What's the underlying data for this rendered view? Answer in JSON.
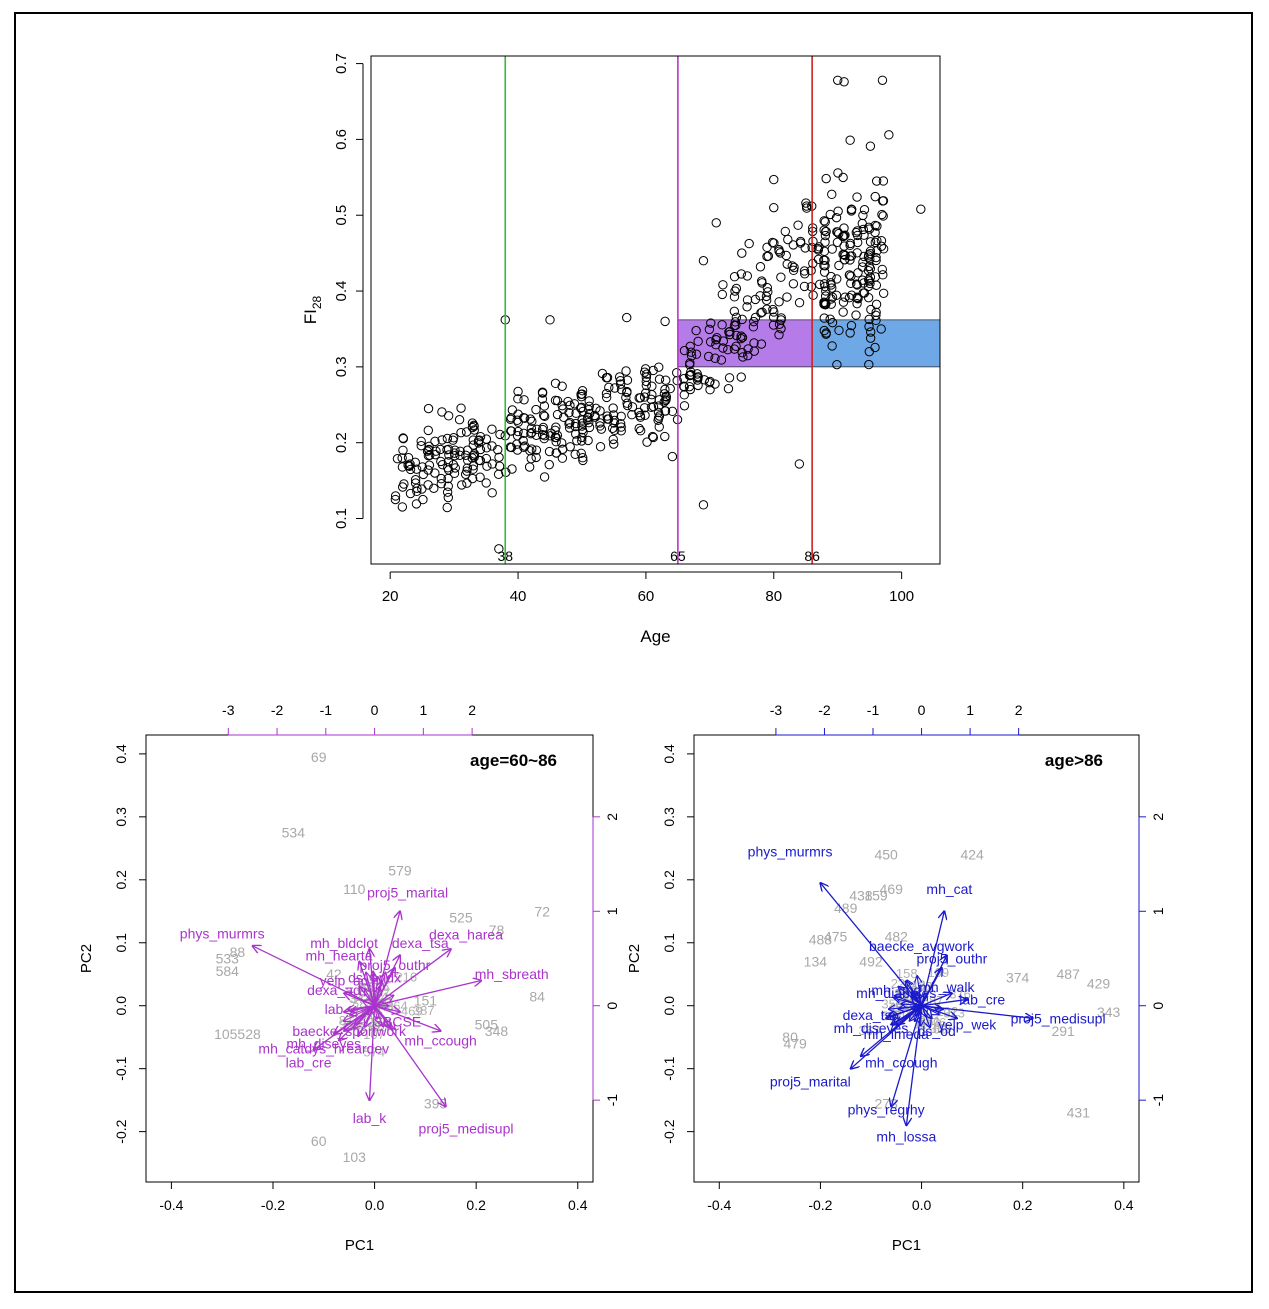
{
  "chart_data": [
    {
      "type": "scatter",
      "xlabel": "Age",
      "ylabel_main": "FI",
      "ylabel_sub": "28",
      "xlim": [
        17,
        106
      ],
      "ylim": [
        0.04,
        0.71
      ],
      "xticks": [
        20,
        40,
        60,
        80,
        100
      ],
      "yticks": [
        0.1,
        0.2,
        0.3,
        0.4,
        0.5,
        0.6,
        0.7
      ],
      "vlines": [
        {
          "x": 38,
          "label": "38",
          "color": "#33bb33"
        },
        {
          "x": 65,
          "label": "65",
          "color": "#bb33cc"
        },
        {
          "x": 86,
          "label": "86",
          "color": "#cc2222"
        }
      ],
      "bands": [
        {
          "x0": 65,
          "x1": 86,
          "y0": 0.3,
          "y1": 0.362,
          "color": "#b57be8"
        },
        {
          "x0": 86,
          "x1": 106,
          "y0": 0.3,
          "y1": 0.362,
          "color": "#6fa8e6"
        }
      ],
      "clusters": [
        {
          "x0": 21,
          "x1": 64,
          "slope": 0.0026,
          "base": 0.155,
          "spread": 0.045,
          "n": 330
        },
        {
          "x0": 64,
          "x1": 87,
          "slope": 0.009,
          "base": 0.26,
          "spread": 0.07,
          "n": 150
        },
        {
          "x0": 87,
          "x1": 97,
          "slope": 0.0,
          "base": 0.43,
          "spread": 0.11,
          "n": 170
        }
      ],
      "extra_points": [
        [
          38,
          0.362
        ],
        [
          45,
          0.362
        ],
        [
          57,
          0.365
        ],
        [
          63,
          0.36
        ],
        [
          90,
          0.678
        ],
        [
          91,
          0.676
        ],
        [
          97,
          0.678
        ],
        [
          103,
          0.508
        ],
        [
          98,
          0.606
        ],
        [
          69,
          0.44
        ],
        [
          71,
          0.49
        ],
        [
          75,
          0.45
        ],
        [
          80,
          0.547
        ],
        [
          80,
          0.51
        ],
        [
          26,
          0.245
        ],
        [
          22,
          0.19
        ],
        [
          37,
          0.06
        ],
        [
          84,
          0.172
        ],
        [
          69,
          0.118
        ]
      ]
    },
    {
      "type": "biplot",
      "title": "age=60~86",
      "color": "#aa33cc",
      "xlabel": "PC1",
      "ylabel": "PC2",
      "xlim": [
        -0.45,
        0.43
      ],
      "ylim": [
        -0.28,
        0.43
      ],
      "xticks": [
        -0.4,
        -0.2,
        0.0,
        0.2,
        0.4
      ],
      "yticks": [
        -0.2,
        -0.1,
        0.0,
        0.1,
        0.2,
        0.3,
        0.4
      ],
      "top_ticks": [
        -3,
        -2,
        -1,
        0,
        1,
        2
      ],
      "right_ticks": [
        -1,
        0,
        1,
        2
      ],
      "loading_scale": 6.9,
      "loadings": [
        {
          "name": "phys_murmrs",
          "x": -0.24,
          "y": 0.095,
          "lx": -0.3,
          "ly": 0.115
        },
        {
          "name": "proj5_marital",
          "x": 0.05,
          "y": 0.15,
          "lx": 0.065,
          "ly": 0.18
        },
        {
          "name": "mh_bldclot",
          "x": -0.01,
          "y": 0.09,
          "lx": -0.06,
          "ly": 0.1
        },
        {
          "name": "dexa_tsa",
          "x": 0.05,
          "y": 0.08,
          "lx": 0.09,
          "ly": 0.1
        },
        {
          "name": "dexa_harea",
          "x": 0.15,
          "y": 0.09,
          "lx": 0.18,
          "ly": 0.113
        },
        {
          "name": "mh_hearta",
          "x": -0.03,
          "y": 0.07,
          "lx": -0.07,
          "ly": 0.08
        },
        {
          "name": "proj5_outhr",
          "x": 0.04,
          "y": 0.06,
          "lx": 0.04,
          "ly": 0.065
        },
        {
          "name": "mh_sbreath",
          "x": 0.21,
          "y": 0.04,
          "lx": 0.27,
          "ly": 0.05
        },
        {
          "name": "mh_ccough",
          "x": 0.13,
          "y": -0.04,
          "lx": 0.13,
          "ly": -0.055
        },
        {
          "name": "proj5_medisupl",
          "x": 0.14,
          "y": -0.16,
          "lx": 0.18,
          "ly": -0.195
        },
        {
          "name": "lab_k",
          "x": -0.01,
          "y": -0.15,
          "lx": -0.01,
          "ly": -0.178
        },
        {
          "name": "lab_cre",
          "x": -0.12,
          "y": -0.07,
          "lx": -0.13,
          "ly": -0.09
        },
        {
          "name": "mh_catdys_hreardev",
          "x": -0.07,
          "y": -0.055,
          "lx": -0.1,
          "ly": -0.068
        },
        {
          "name": "baecke_sportwork",
          "x": -0.06,
          "y": -0.04,
          "lx": -0.05,
          "ly": -0.04
        },
        {
          "name": "mh_diseyes",
          "x": -0.08,
          "y": -0.045,
          "lx": -0.1,
          "ly": -0.06
        },
        {
          "name": "SBCSE",
          "x": 0.05,
          "y": -0.01,
          "lx": 0.045,
          "ly": -0.025
        },
        {
          "name": "ds_andx",
          "x": 0.01,
          "y": 0.03,
          "lx": 0.0,
          "ly": 0.045
        },
        {
          "name": "yelp_ad",
          "x": -0.03,
          "y": 0.03,
          "lx": -0.06,
          "ly": 0.04
        },
        {
          "name": "dexa_ad",
          "x": -0.06,
          "y": 0.02,
          "lx": -0.08,
          "ly": 0.025
        },
        {
          "name": "lab",
          "x": -0.06,
          "y": -0.01,
          "lx": -0.08,
          "ly": -0.005
        }
      ],
      "samples": [
        {
          "id": "69",
          "x": -0.11,
          "y": 0.395
        },
        {
          "id": "534",
          "x": -0.16,
          "y": 0.275
        },
        {
          "id": "579",
          "x": 0.05,
          "y": 0.215
        },
        {
          "id": "110",
          "x": -0.04,
          "y": 0.185
        },
        {
          "id": "525",
          "x": 0.17,
          "y": 0.14
        },
        {
          "id": "72",
          "x": 0.33,
          "y": 0.15
        },
        {
          "id": "78",
          "x": 0.24,
          "y": 0.12
        },
        {
          "id": "88",
          "x": -0.27,
          "y": 0.085
        },
        {
          "id": "533",
          "x": -0.29,
          "y": 0.075
        },
        {
          "id": "584",
          "x": -0.29,
          "y": 0.055
        },
        {
          "id": "42",
          "x": -0.08,
          "y": 0.05
        },
        {
          "id": "84",
          "x": 0.32,
          "y": 0.015
        },
        {
          "id": "151",
          "x": 0.1,
          "y": 0.008
        },
        {
          "id": "505",
          "x": 0.22,
          "y": -0.03
        },
        {
          "id": "348",
          "x": 0.24,
          "y": -0.04
        },
        {
          "id": "105528",
          "x": -0.27,
          "y": -0.045
        },
        {
          "id": "395",
          "x": 0.12,
          "y": -0.155
        },
        {
          "id": "60",
          "x": -0.11,
          "y": -0.215
        },
        {
          "id": "103",
          "x": -0.04,
          "y": -0.24
        }
      ],
      "noise_labels": 30
    },
    {
      "type": "biplot",
      "title": "age>86",
      "color": "#1a1acc",
      "xlabel": "PC1",
      "ylabel": "PC2",
      "xlim": [
        -0.45,
        0.43
      ],
      "ylim": [
        -0.28,
        0.43
      ],
      "xticks": [
        -0.4,
        -0.2,
        0.0,
        0.2,
        0.4
      ],
      "yticks": [
        -0.2,
        -0.1,
        0.0,
        0.1,
        0.2,
        0.3,
        0.4
      ],
      "top_ticks": [
        -3,
        -2,
        -1,
        0,
        1,
        2
      ],
      "right_ticks": [
        -1,
        0,
        1,
        2
      ],
      "loading_scale": 6.9,
      "loadings": [
        {
          "name": "phys_murmrs",
          "x": -0.2,
          "y": 0.195,
          "lx": -0.26,
          "ly": 0.245
        },
        {
          "name": "mh_cat",
          "x": 0.045,
          "y": 0.15,
          "lx": 0.055,
          "ly": 0.185
        },
        {
          "name": "baecke_avgwork",
          "x": 0.05,
          "y": 0.08,
          "lx": 0.0,
          "ly": 0.095
        },
        {
          "name": "proj5_outhr",
          "x": 0.04,
          "y": 0.06,
          "lx": 0.06,
          "ly": 0.075
        },
        {
          "name": "mh_walk",
          "x": 0.06,
          "y": 0.02,
          "lx": 0.05,
          "ly": 0.03
        },
        {
          "name": "lab_cre",
          "x": 0.09,
          "y": 0.01,
          "lx": 0.12,
          "ly": 0.01
        },
        {
          "name": "proj5_medisupl",
          "x": 0.22,
          "y": -0.02,
          "lx": 0.27,
          "ly": -0.02
        },
        {
          "name": "mh_diabetes",
          "x": -0.02,
          "y": 0.02,
          "lx": -0.05,
          "ly": 0.02
        },
        {
          "name": "dexa_tsa",
          "x": -0.07,
          "y": -0.02,
          "lx": -0.1,
          "ly": -0.015
        },
        {
          "name": "mh_diseyes",
          "x": -0.06,
          "y": -0.03,
          "lx": -0.1,
          "ly": -0.035
        },
        {
          "name": "mh_ccough",
          "x": -0.12,
          "y": -0.08,
          "lx": -0.04,
          "ly": -0.09
        },
        {
          "name": "proj5_marital",
          "x": -0.14,
          "y": -0.1,
          "lx": -0.22,
          "ly": -0.12
        },
        {
          "name": "phys_regrhy",
          "x": -0.06,
          "y": -0.16,
          "lx": -0.07,
          "ly": -0.165
        },
        {
          "name": "mh_lossa",
          "x": -0.03,
          "y": -0.19,
          "lx": -0.03,
          "ly": -0.208
        },
        {
          "name": "mh_imeda",
          "x": -0.05,
          "y": -0.03,
          "lx": -0.05,
          "ly": -0.045
        },
        {
          "name": "ds_od",
          "x": 0.02,
          "y": -0.02,
          "lx": 0.03,
          "ly": -0.04
        },
        {
          "name": "yelp_wek",
          "x": 0.07,
          "y": -0.02,
          "lx": 0.09,
          "ly": -0.03
        },
        {
          "name": "mh_chd",
          "x": -0.02,
          "y": 0.015,
          "lx": -0.05,
          "ly": 0.025
        }
      ],
      "samples": [
        {
          "id": "450",
          "x": -0.07,
          "y": 0.24
        },
        {
          "id": "424",
          "x": 0.1,
          "y": 0.24
        },
        {
          "id": "469",
          "x": -0.06,
          "y": 0.185
        },
        {
          "id": "438",
          "x": -0.12,
          "y": 0.175
        },
        {
          "id": "159",
          "x": -0.09,
          "y": 0.175
        },
        {
          "id": "489",
          "x": -0.15,
          "y": 0.155
        },
        {
          "id": "475",
          "x": -0.17,
          "y": 0.11
        },
        {
          "id": "488",
          "x": -0.2,
          "y": 0.105
        },
        {
          "id": "134",
          "x": -0.21,
          "y": 0.07
        },
        {
          "id": "492",
          "x": -0.1,
          "y": 0.07
        },
        {
          "id": "482",
          "x": -0.05,
          "y": 0.11
        },
        {
          "id": "374",
          "x": 0.19,
          "y": 0.045
        },
        {
          "id": "487",
          "x": 0.29,
          "y": 0.05
        },
        {
          "id": "429",
          "x": 0.35,
          "y": 0.035
        },
        {
          "id": "343",
          "x": 0.37,
          "y": -0.01
        },
        {
          "id": "291",
          "x": 0.28,
          "y": -0.04
        },
        {
          "id": "80",
          "x": -0.26,
          "y": -0.05
        },
        {
          "id": "479",
          "x": -0.25,
          "y": -0.06
        },
        {
          "id": "431",
          "x": 0.31,
          "y": -0.17
        },
        {
          "id": "273",
          "x": -0.07,
          "y": -0.155
        }
      ],
      "noise_labels": 28
    }
  ]
}
